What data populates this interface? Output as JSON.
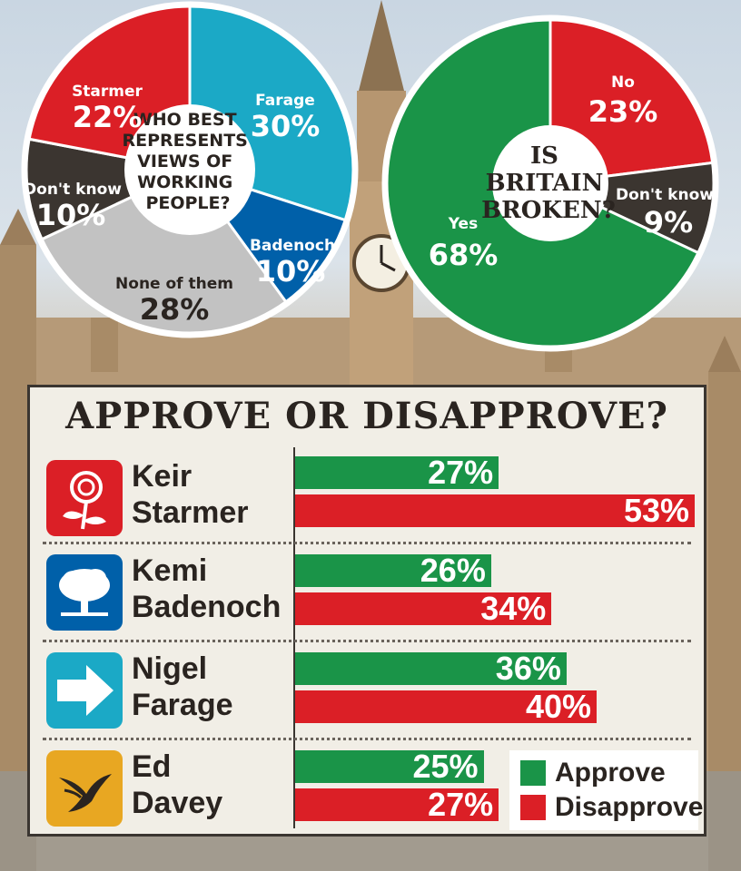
{
  "colors": {
    "labour_red": "#db1f26",
    "reform_teal": "#1ba9c6",
    "conservative_blue": "#0060a9",
    "libdem_gold": "#e8a722",
    "dont_know": "#3b3530",
    "none_grey": "#c2c2c2",
    "approve_green": "#1a9448",
    "disapprove_red": "#db1f26"
  },
  "chart_data": [
    {
      "type": "pie",
      "title": "WHO BEST REPRESENTS VIEWS OF WORKING PEOPLE?",
      "title_lines": [
        "WHO BEST",
        "REPRESENTS",
        "VIEWS OF",
        "WORKING",
        "PEOPLE?"
      ],
      "slices": [
        {
          "label": "Farage",
          "value": 30,
          "display": "30%",
          "color": "#1ba9c6"
        },
        {
          "label": "Badenoch",
          "value": 10,
          "display": "10%",
          "color": "#0060a9"
        },
        {
          "label": "None of them",
          "value": 28,
          "display": "28%",
          "color": "#c2c2c2"
        },
        {
          "label": "Don't know",
          "value": 10,
          "display": "10%",
          "color": "#3b3530"
        },
        {
          "label": "Starmer",
          "value": 22,
          "display": "22%",
          "color": "#db1f26"
        }
      ]
    },
    {
      "type": "pie",
      "title": "IS BRITAIN BROKEN?",
      "title_lines": [
        "IS",
        "BRITAIN",
        "BROKEN?"
      ],
      "slices": [
        {
          "label": "No",
          "value": 23,
          "display": "23%",
          "color": "#db1f26"
        },
        {
          "label": "Don't know",
          "value": 9,
          "display": "9%",
          "color": "#3b3530"
        },
        {
          "label": "Yes",
          "value": 68,
          "display": "68%",
          "color": "#1a9448"
        }
      ]
    },
    {
      "type": "bar",
      "orientation": "horizontal",
      "title": "APPROVE OR DISAPPROVE?",
      "categories": [
        "Keir Starmer",
        "Kemi Badenoch",
        "Nigel Farage",
        "Ed Davey"
      ],
      "series": [
        {
          "name": "Approve",
          "values": [
            27,
            26,
            36,
            25
          ],
          "display": [
            "27%",
            "26%",
            "36%",
            "25%"
          ],
          "color": "#1a9448"
        },
        {
          "name": "Disapprove",
          "values": [
            53,
            34,
            40,
            27
          ],
          "display": [
            "53%",
            "34%",
            "40%",
            "27%"
          ],
          "color": "#db1f26"
        }
      ],
      "legend": "bottom-right"
    }
  ],
  "politicians": [
    {
      "first": "Keir",
      "last": "Starmer",
      "party_icon": "labour-rose-icon"
    },
    {
      "first": "Kemi",
      "last": "Badenoch",
      "party_icon": "conservative-tree-icon"
    },
    {
      "first": "Nigel",
      "last": "Farage",
      "party_icon": "reform-arrow-icon"
    },
    {
      "first": "Ed",
      "last": "Davey",
      "party_icon": "libdem-bird-icon"
    }
  ],
  "legend": {
    "approve": "Approve",
    "disapprove": "Disapprove"
  }
}
